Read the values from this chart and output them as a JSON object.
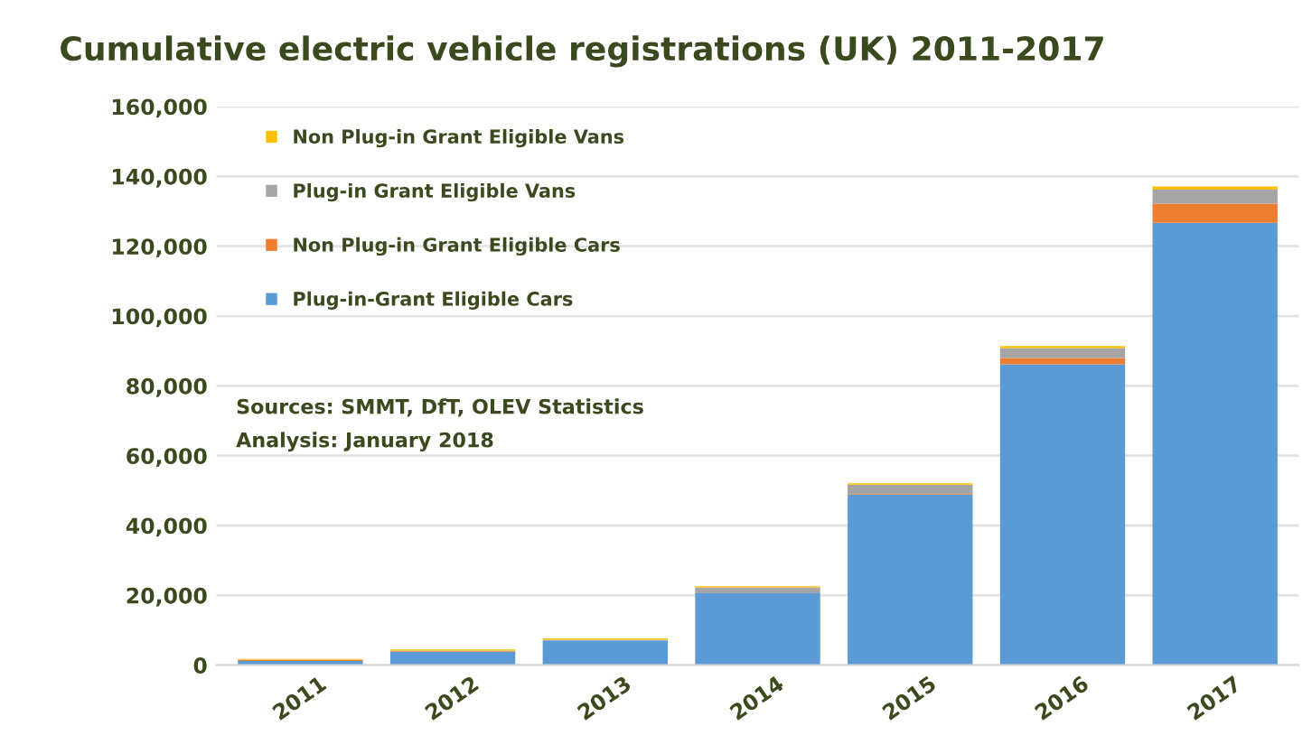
{
  "chart_data": {
    "type": "bar",
    "title": "Cumulative electric vehicle registrations (UK) 2011-2017",
    "categories": [
      "2011",
      "2012",
      "2013",
      "2014",
      "2015",
      "2016",
      "2017"
    ],
    "stacked": true,
    "series": [
      {
        "name": "Plug-in-Grant Eligible Cars",
        "color": "#5b9bd5",
        "values": [
          1200,
          3800,
          7100,
          20600,
          48800,
          86200,
          126700
        ]
      },
      {
        "name": "Non Plug-in Grant Eligible Cars",
        "color": "#ed7d31",
        "values": [
          300,
          200,
          null,
          null,
          200,
          1800,
          5500
        ]
      },
      {
        "name": "Plug-in Grant Eligible Vans",
        "color": "#a5a5a5",
        "values": [
          100,
          200,
          200,
          1700,
          2700,
          2800,
          4000
        ]
      },
      {
        "name": "Non Plug-in Grant Eligible Vans",
        "color": "#ffc000",
        "values": [
          200,
          300,
          400,
          300,
          400,
          600,
          900
        ]
      }
    ],
    "ylim": [
      0,
      160000
    ],
    "yticks": [
      {
        "value": 0,
        "label": "0"
      },
      {
        "value": 20000,
        "label": "20,000"
      },
      {
        "value": 40000,
        "label": "40,000"
      },
      {
        "value": 60000,
        "label": "60,000"
      },
      {
        "value": 80000,
        "label": "80,000"
      },
      {
        "value": 100000,
        "label": "100,000"
      },
      {
        "value": 120000,
        "label": "120,000"
      },
      {
        "value": 140000,
        "label": "140,000"
      },
      {
        "value": 160000,
        "label": "160,000"
      }
    ],
    "grid": "y",
    "legend": "top left",
    "annotations": [
      "Sources: SMMT, DfT, OLEV Statistics",
      "Analysis: January 2018"
    ]
  }
}
